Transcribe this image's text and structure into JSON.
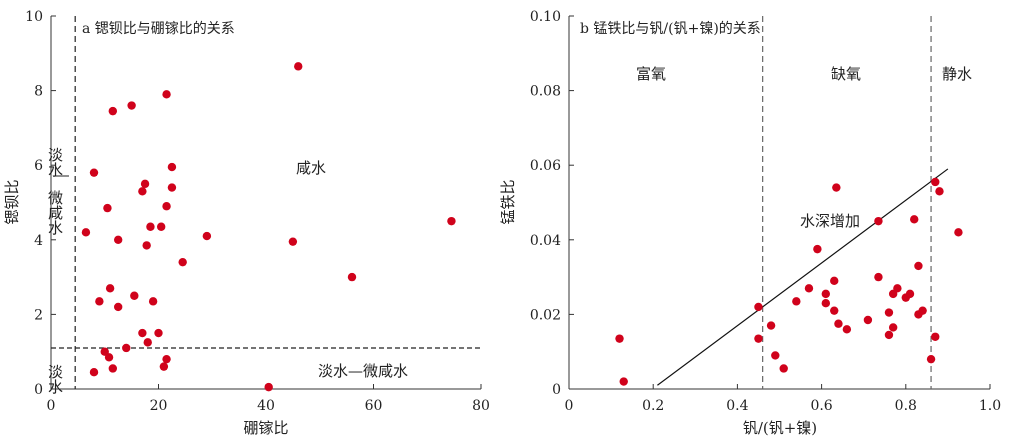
{
  "chart_data": [
    {
      "type": "scatter",
      "title": "a 锶钡比与硼镓比的关系",
      "xlabel": "硼镓比",
      "ylabel": "锶钡比",
      "xlim": [
        0,
        80
      ],
      "ylim": [
        0,
        10
      ],
      "xticks": [
        "0",
        "20",
        "40",
        "60",
        "80"
      ],
      "yticks": [
        "0",
        "2",
        "4",
        "6",
        "8",
        "10"
      ],
      "xtick_values": [
        0,
        20,
        40,
        60,
        80
      ],
      "ytick_values": [
        0,
        2,
        4,
        6,
        8,
        10
      ],
      "marker_color": "#d0021b",
      "reference_lines": [
        {
          "orientation": "vertical",
          "value": 4.5,
          "style": "dashed"
        },
        {
          "orientation": "horizontal",
          "value": 1.1,
          "style": "dashed"
        }
      ],
      "region_labels": [
        {
          "text": "淡水"
        },
        {
          "text": "微咸水"
        },
        {
          "text": "咸水"
        },
        {
          "text": "淡水"
        },
        {
          "text": "淡水—微咸水"
        }
      ],
      "points": [
        [
          11.5,
          7.45
        ],
        [
          15,
          7.6
        ],
        [
          21.5,
          7.9
        ],
        [
          46,
          8.65
        ],
        [
          8,
          5.8
        ],
        [
          22.5,
          5.95
        ],
        [
          17.5,
          5.5
        ],
        [
          17,
          5.3
        ],
        [
          22.5,
          5.4
        ],
        [
          10.5,
          4.85
        ],
        [
          21.5,
          4.9
        ],
        [
          6.5,
          4.2
        ],
        [
          18.5,
          4.35
        ],
        [
          20.5,
          4.35
        ],
        [
          12.5,
          4.0
        ],
        [
          17.8,
          3.85
        ],
        [
          29,
          4.1
        ],
        [
          45,
          3.95
        ],
        [
          74.5,
          4.5
        ],
        [
          24.5,
          3.4
        ],
        [
          56,
          3.0
        ],
        [
          11,
          2.7
        ],
        [
          9,
          2.35
        ],
        [
          15.5,
          2.5
        ],
        [
          19,
          2.35
        ],
        [
          12.5,
          2.2
        ],
        [
          17,
          1.5
        ],
        [
          20,
          1.5
        ],
        [
          18,
          1.25
        ],
        [
          14,
          1.1
        ],
        [
          10,
          1.0
        ],
        [
          10.8,
          0.85
        ],
        [
          21.5,
          0.8
        ],
        [
          8,
          0.45
        ],
        [
          11.5,
          0.55
        ],
        [
          21,
          0.6
        ],
        [
          40.5,
          0.05
        ]
      ]
    },
    {
      "type": "scatter",
      "title": "b 锰铁比与钒/(钒+镍)的关系",
      "xlabel": "钒/(钒+镍)",
      "ylabel": "锰铁比",
      "xlim": [
        0,
        1.0
      ],
      "ylim": [
        0,
        0.1
      ],
      "xticks": [
        "0",
        "0.2",
        "0.4",
        "0.6",
        "0.8",
        "1.0"
      ],
      "yticks": [
        "0",
        "0.02",
        "0.04",
        "0.06",
        "0.08",
        "0.10"
      ],
      "xtick_values": [
        0,
        0.2,
        0.4,
        0.6,
        0.8,
        1.0
      ],
      "ytick_values": [
        0,
        0.02,
        0.04,
        0.06,
        0.08,
        0.1
      ],
      "marker_color": "#d0021b",
      "reference_lines": [
        {
          "orientation": "vertical",
          "value": 0.46,
          "style": "dashed"
        },
        {
          "orientation": "vertical",
          "value": 0.86,
          "style": "dashed"
        }
      ],
      "trend_line": {
        "x": [
          0.21,
          0.9
        ],
        "y": [
          0.001,
          0.059
        ],
        "label": "水深增加"
      },
      "region_labels": [
        {
          "text": "富氧"
        },
        {
          "text": "缺氧"
        },
        {
          "text": "静水"
        }
      ],
      "points": [
        [
          0.12,
          0.0135
        ],
        [
          0.13,
          0.002
        ],
        [
          0.45,
          0.022
        ],
        [
          0.45,
          0.0135
        ],
        [
          0.48,
          0.017
        ],
        [
          0.49,
          0.009
        ],
        [
          0.51,
          0.0055
        ],
        [
          0.54,
          0.0235
        ],
        [
          0.57,
          0.027
        ],
        [
          0.59,
          0.0375
        ],
        [
          0.61,
          0.0255
        ],
        [
          0.61,
          0.023
        ],
        [
          0.63,
          0.021
        ],
        [
          0.63,
          0.029
        ],
        [
          0.635,
          0.054
        ],
        [
          0.64,
          0.0175
        ],
        [
          0.66,
          0.016
        ],
        [
          0.71,
          0.0185
        ],
        [
          0.735,
          0.045
        ],
        [
          0.735,
          0.03
        ],
        [
          0.76,
          0.0205
        ],
        [
          0.76,
          0.0145
        ],
        [
          0.77,
          0.0165
        ],
        [
          0.77,
          0.0255
        ],
        [
          0.78,
          0.027
        ],
        [
          0.8,
          0.0245
        ],
        [
          0.81,
          0.0255
        ],
        [
          0.82,
          0.0455
        ],
        [
          0.83,
          0.033
        ],
        [
          0.83,
          0.02
        ],
        [
          0.84,
          0.021
        ],
        [
          0.86,
          0.008
        ],
        [
          0.87,
          0.0555
        ],
        [
          0.87,
          0.014
        ],
        [
          0.88,
          0.053
        ],
        [
          0.925,
          0.042
        ]
      ]
    }
  ]
}
